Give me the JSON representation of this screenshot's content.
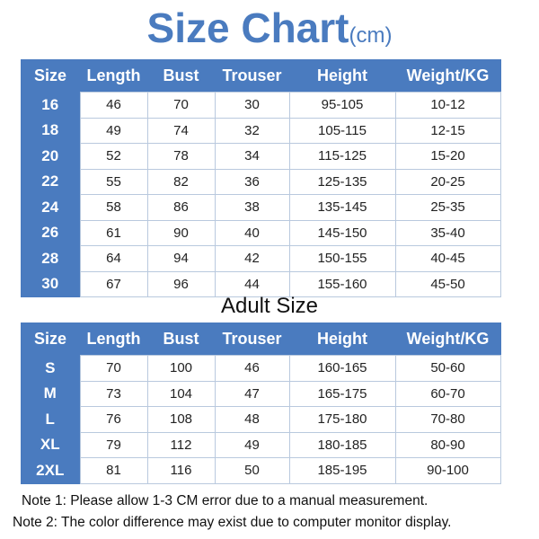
{
  "title": "Size Chart",
  "unit": "(cm)",
  "headers": [
    "Size",
    "Length",
    "Bust",
    "Trouser",
    "Height",
    "Weight/KG"
  ],
  "kids": [
    [
      "16",
      "46",
      "70",
      "30",
      "95-105",
      "10-12"
    ],
    [
      "18",
      "49",
      "74",
      "32",
      "105-115",
      "12-15"
    ],
    [
      "20",
      "52",
      "78",
      "34",
      "115-125",
      "15-20"
    ],
    [
      "22",
      "55",
      "82",
      "36",
      "125-135",
      "20-25"
    ],
    [
      "24",
      "58",
      "86",
      "38",
      "135-145",
      "25-35"
    ],
    [
      "26",
      "61",
      "90",
      "40",
      "145-150",
      "35-40"
    ],
    [
      "28",
      "64",
      "94",
      "42",
      "150-155",
      "40-45"
    ],
    [
      "30",
      "67",
      "96",
      "44",
      "155-160",
      "45-50"
    ]
  ],
  "adult_title": "Adult Size",
  "adult": [
    [
      "S",
      "70",
      "100",
      "46",
      "160-165",
      "50-60"
    ],
    [
      "M",
      "73",
      "104",
      "47",
      "165-175",
      "60-70"
    ],
    [
      "L",
      "76",
      "108",
      "48",
      "175-180",
      "70-80"
    ],
    [
      "XL",
      "79",
      "112",
      "49",
      "180-185",
      "80-90"
    ],
    [
      "2XL",
      "81",
      "116",
      "50",
      "185-195",
      "90-100"
    ]
  ],
  "notes": [
    "Note 1: Please allow 1-3 CM error due to a manual measurement.",
    "Note 2: The color difference may exist due to computer monitor display."
  ],
  "colors": {
    "header_blue": "#4a7bbf",
    "border": "#b9c9de"
  }
}
